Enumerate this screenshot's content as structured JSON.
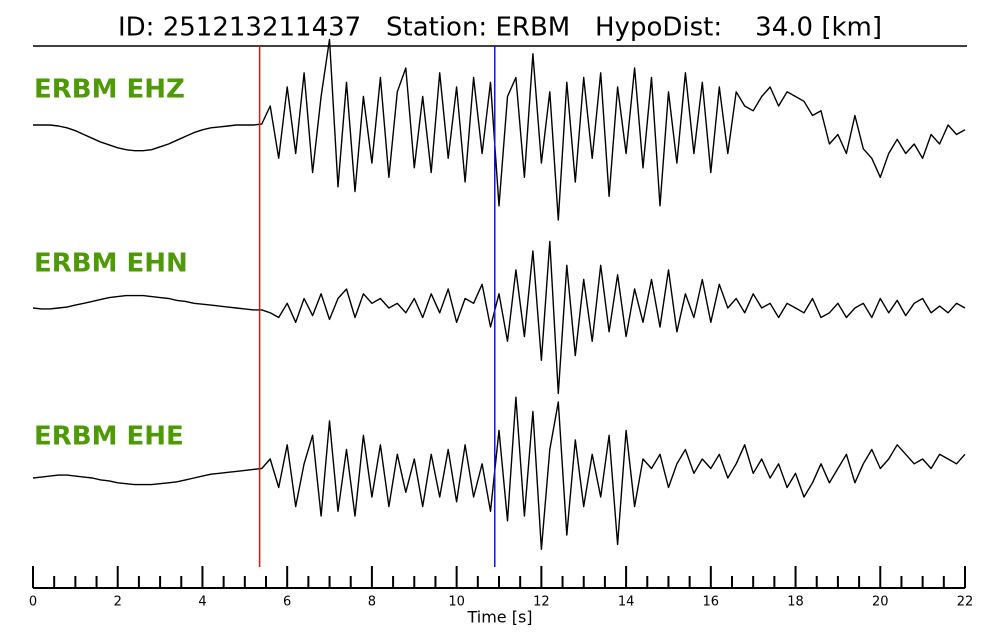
{
  "chart_data": {
    "type": "line",
    "title": "ID: 251213211437   Station: ERBM   HypoDist:    34.0 [km]",
    "xlabel": "Time [s]",
    "xlim": [
      0,
      22
    ],
    "xticks": [
      0,
      2,
      4,
      6,
      8,
      10,
      12,
      14,
      16,
      18,
      20,
      22
    ],
    "minor_xticks": [
      0.5,
      1,
      1.5,
      2.5,
      3,
      3.5,
      4.5,
      5,
      5.5,
      6.5,
      7,
      7.5,
      8.5,
      9,
      9.5,
      10.5,
      11,
      11.5,
      12.5,
      13,
      13.5,
      14.5,
      15,
      15.5,
      16.5,
      17,
      17.5,
      18.5,
      19,
      19.5,
      20.5,
      21,
      21.5
    ],
    "markers": [
      {
        "x": 5.35,
        "color": "#e8120c"
      },
      {
        "x": 10.9,
        "color": "#1414e0"
      }
    ],
    "label_color": "#4e9a06",
    "x": [
      0,
      0.2,
      0.4,
      0.6,
      0.8,
      1,
      1.2,
      1.4,
      1.6,
      1.8,
      2,
      2.2,
      2.4,
      2.6,
      2.8,
      3,
      3.2,
      3.4,
      3.6,
      3.8,
      4,
      4.2,
      4.4,
      4.6,
      4.8,
      5,
      5.2,
      5.4,
      5.6,
      5.8,
      6,
      6.2,
      6.4,
      6.6,
      6.8,
      7,
      7.2,
      7.4,
      7.6,
      7.8,
      8,
      8.2,
      8.4,
      8.6,
      8.8,
      9,
      9.2,
      9.4,
      9.6,
      9.8,
      10,
      10.2,
      10.4,
      10.6,
      10.8,
      11,
      11.2,
      11.4,
      11.6,
      11.8,
      12,
      12.2,
      12.4,
      12.6,
      12.8,
      13,
      13.2,
      13.4,
      13.6,
      13.8,
      14,
      14.2,
      14.4,
      14.6,
      14.8,
      15,
      15.2,
      15.4,
      15.6,
      15.8,
      16,
      16.2,
      16.4,
      16.6,
      16.8,
      17,
      17.2,
      17.4,
      17.6,
      17.8,
      18,
      18.2,
      18.4,
      18.6,
      18.8,
      19,
      19.2,
      19.4,
      19.6,
      19.8,
      20,
      20.2,
      20.4,
      20.6,
      20.8,
      21,
      21.2,
      21.4,
      21.6,
      21.8,
      22
    ],
    "series": [
      {
        "name": "ERBM EHZ",
        "color": "#000000",
        "values": [
          0,
          0,
          0,
          -0.01,
          -0.03,
          -0.06,
          -0.1,
          -0.14,
          -0.18,
          -0.21,
          -0.24,
          -0.26,
          -0.27,
          -0.27,
          -0.26,
          -0.23,
          -0.2,
          -0.16,
          -0.12,
          -0.08,
          -0.05,
          -0.03,
          -0.02,
          -0.01,
          0,
          0,
          0,
          0.01,
          0.2,
          -0.35,
          0.4,
          -0.3,
          0.55,
          -0.5,
          0.3,
          0.9,
          -0.65,
          0.45,
          -0.7,
          0.3,
          -0.4,
          0.5,
          -0.55,
          0.35,
          0.6,
          -0.45,
          0.3,
          -0.5,
          0.55,
          -0.35,
          0.4,
          -0.6,
          0.5,
          -0.3,
          0.45,
          -0.85,
          0.3,
          0.5,
          -0.55,
          0.75,
          -0.4,
          0.35,
          -1.0,
          0.45,
          -0.6,
          0.5,
          -0.35,
          0.55,
          -0.75,
          0.4,
          -0.3,
          0.6,
          -0.45,
          0.5,
          -0.85,
          0.35,
          -0.4,
          0.55,
          -0.3,
          0.45,
          -0.5,
          0.4,
          -0.3,
          0.35,
          0.2,
          0.15,
          0.3,
          0.4,
          0.2,
          0.35,
          0.3,
          0.25,
          0.1,
          0.15,
          -0.2,
          -0.1,
          -0.3,
          0.1,
          -0.25,
          -0.35,
          -0.55,
          -0.3,
          -0.15,
          -0.3,
          -0.2,
          -0.35,
          -0.1,
          -0.2,
          0,
          -0.1,
          -0.05
        ]
      },
      {
        "name": "ERBM EHN",
        "color": "#000000",
        "values": [
          0,
          -0.01,
          -0.01,
          0,
          0.01,
          0.03,
          0.05,
          0.07,
          0.09,
          0.11,
          0.12,
          0.13,
          0.13,
          0.13,
          0.12,
          0.11,
          0.1,
          0.08,
          0.07,
          0.05,
          0.04,
          0.03,
          0.02,
          0.01,
          0,
          -0.01,
          -0.02,
          -0.02,
          -0.05,
          -0.1,
          0.05,
          -0.15,
          0.1,
          -0.08,
          0.15,
          -0.12,
          0.1,
          0.2,
          -0.1,
          0.15,
          0.05,
          0.1,
          0,
          0.05,
          -0.05,
          0.1,
          -0.1,
          0.15,
          -0.05,
          0.2,
          -0.15,
          0.1,
          0.05,
          0.25,
          -0.2,
          0.15,
          -0.35,
          0.4,
          -0.3,
          0.6,
          -0.55,
          0.7,
          -0.9,
          0.45,
          -0.5,
          0.3,
          -0.35,
          0.45,
          -0.25,
          0.35,
          -0.3,
          0.2,
          -0.15,
          0.3,
          -0.2,
          0.4,
          -0.25,
          0.15,
          -0.1,
          0.3,
          -0.15,
          0.25,
          0,
          0.1,
          -0.05,
          0.15,
          0,
          0.05,
          -0.1,
          0.05,
          0,
          -0.05,
          0.1,
          -0.1,
          -0.05,
          0.05,
          -0.1,
          0,
          0.05,
          -0.1,
          0.1,
          -0.05,
          0.08,
          -0.08,
          0.05,
          0.1,
          -0.05,
          0.02,
          -0.05,
          0.05,
          0
        ]
      },
      {
        "name": "ERBM EHE",
        "color": "#000000",
        "values": [
          0,
          0.01,
          0.02,
          0.03,
          0.03,
          0.02,
          0.01,
          0,
          -0.02,
          -0.03,
          -0.05,
          -0.06,
          -0.07,
          -0.07,
          -0.07,
          -0.06,
          -0.05,
          -0.04,
          -0.02,
          0,
          0.02,
          0.04,
          0.05,
          0.06,
          0.07,
          0.08,
          0.09,
          0.1,
          0.2,
          -0.1,
          0.35,
          -0.3,
          0.15,
          0.45,
          -0.4,
          0.6,
          -0.35,
          0.3,
          -0.4,
          0.45,
          -0.2,
          0.35,
          -0.3,
          0.25,
          -0.15,
          0.2,
          -0.3,
          0.25,
          -0.2,
          0.3,
          -0.25,
          0.35,
          -0.2,
          0.15,
          -0.35,
          0.5,
          -0.45,
          0.85,
          -0.4,
          0.7,
          -0.75,
          0.3,
          0.8,
          -0.6,
          0.4,
          -0.3,
          0.25,
          -0.2,
          0.45,
          -0.7,
          0.5,
          -0.3,
          0.2,
          0.1,
          0.25,
          -0.1,
          0.15,
          0.3,
          0.05,
          0.2,
          0.1,
          0.25,
          0,
          0.15,
          0.35,
          0.05,
          0.2,
          0,
          0.15,
          -0.1,
          0.05,
          -0.2,
          -0.05,
          0.15,
          -0.05,
          0.1,
          0.25,
          -0.05,
          0.15,
          0.3,
          0.1,
          0.2,
          0.35,
          0.25,
          0.15,
          0.2,
          0.1,
          0.25,
          0.2,
          0.15,
          0.25
        ]
      }
    ]
  }
}
